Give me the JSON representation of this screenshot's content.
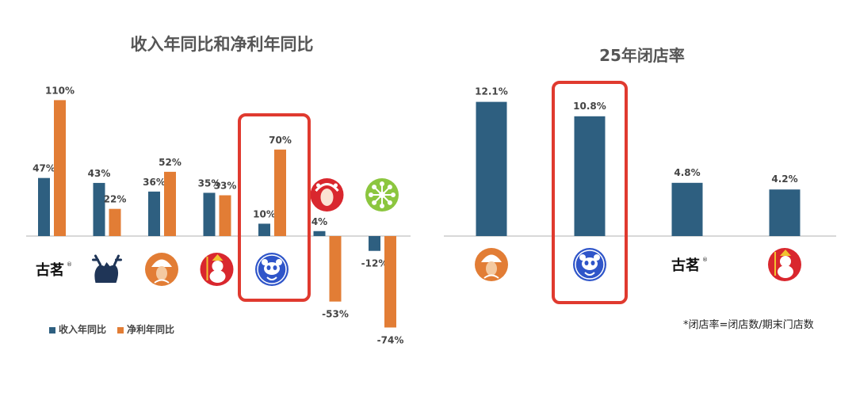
{
  "colors": {
    "revenue": "#2e5f80",
    "profit": "#e27d35",
    "highlight": "#e03a2f",
    "axis": "#cccccc"
  },
  "chart_data": [
    {
      "type": "bar",
      "title": "收入年同比和净利年同比",
      "categories_icons": [
        "guming-logo-text",
        "deer-logo-icon",
        "woman-hat-logo-icon",
        "mixue-snowman-logo-icon",
        "panda-logo-icon",
        "opera-face-logo-icon",
        "green-flower-logo-icon"
      ],
      "category_text": [
        "古茗",
        "",
        "",
        "",
        "",
        "",
        ""
      ],
      "series": [
        {
          "name": "收入年同比",
          "values": [
            47,
            43,
            36,
            35,
            10,
            4,
            -12
          ],
          "labels": [
            "47%",
            "43%",
            "36%",
            "35%",
            "10%",
            "4%",
            "-12%"
          ]
        },
        {
          "name": "净利年同比",
          "values": [
            110,
            22,
            52,
            33,
            70,
            -53,
            -74
          ],
          "labels": [
            "110%",
            "22%",
            "52%",
            "33%",
            "70%",
            "-53%",
            "-74%"
          ]
        }
      ],
      "highlight_index": 4,
      "legend_position": "bottom-left"
    },
    {
      "type": "bar",
      "title": "25年闭店率",
      "categories_icons": [
        "woman-hat-logo-icon",
        "panda-logo-icon",
        "guming-logo-text",
        "mixue-snowman-logo-icon"
      ],
      "category_text": [
        "",
        "",
        "古茗",
        ""
      ],
      "series": [
        {
          "name": "",
          "values": [
            12.1,
            10.8,
            4.8,
            4.2
          ],
          "labels": [
            "12.1%",
            "10.8%",
            "4.8%",
            "4.2%"
          ]
        }
      ],
      "highlight_index": 1,
      "footnote": "*闭店率=闭店数/期末门店数"
    }
  ]
}
